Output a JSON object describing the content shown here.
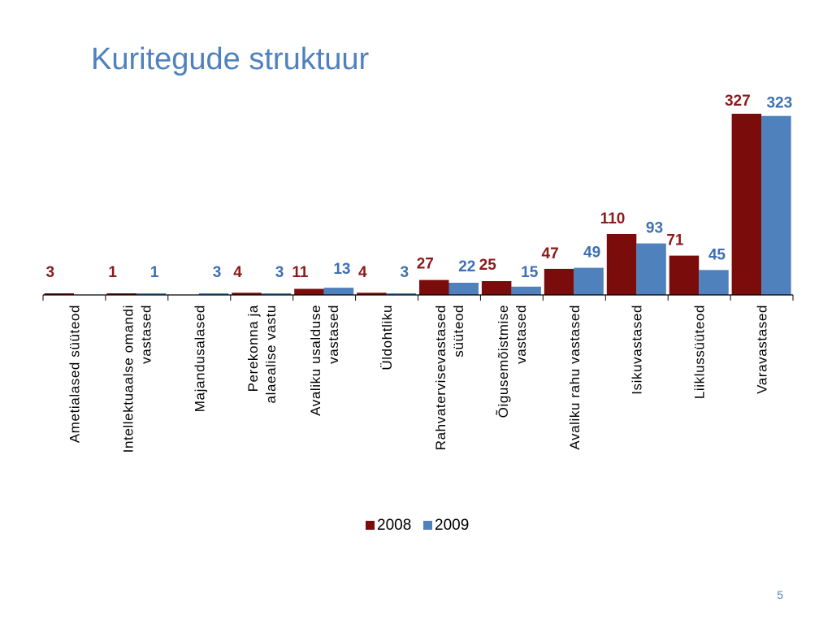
{
  "slide": {
    "title": "Kuritegude struktuur",
    "page_number": "5"
  },
  "chart_data": {
    "type": "bar",
    "categories": [
      [
        "Ametialased süüteod"
      ],
      [
        "Intellektuaalse omandi",
        "vastased"
      ],
      [
        "Majandusalased"
      ],
      [
        "Perekonna ja",
        "alaealise vastu"
      ],
      [
        "Avaliku usalduse",
        "vastased"
      ],
      [
        "Üldohtliku"
      ],
      [
        "Rahvatervisevastased",
        "süüteod"
      ],
      [
        "Õigusemõistmise",
        "vastased"
      ],
      [
        "Avaliku rahu vastased"
      ],
      [
        "Isikuvastased"
      ],
      [
        "Liiklussüüteod"
      ],
      [
        "Varavastased"
      ]
    ],
    "series": [
      {
        "name": "2008",
        "color": "#7b0c0c",
        "label_color": "#8b1a1a",
        "values": [
          3,
          1,
          null,
          4,
          11,
          4,
          27,
          25,
          47,
          110,
          71,
          327
        ]
      },
      {
        "name": "2009",
        "color": "#4f81bd",
        "label_color": "#3d6fb5",
        "values": [
          null,
          1,
          3,
          3,
          13,
          3,
          22,
          15,
          49,
          93,
          45,
          323
        ]
      }
    ],
    "ylim": [
      0,
      327
    ],
    "legend_position": "bottom",
    "grid": false
  }
}
